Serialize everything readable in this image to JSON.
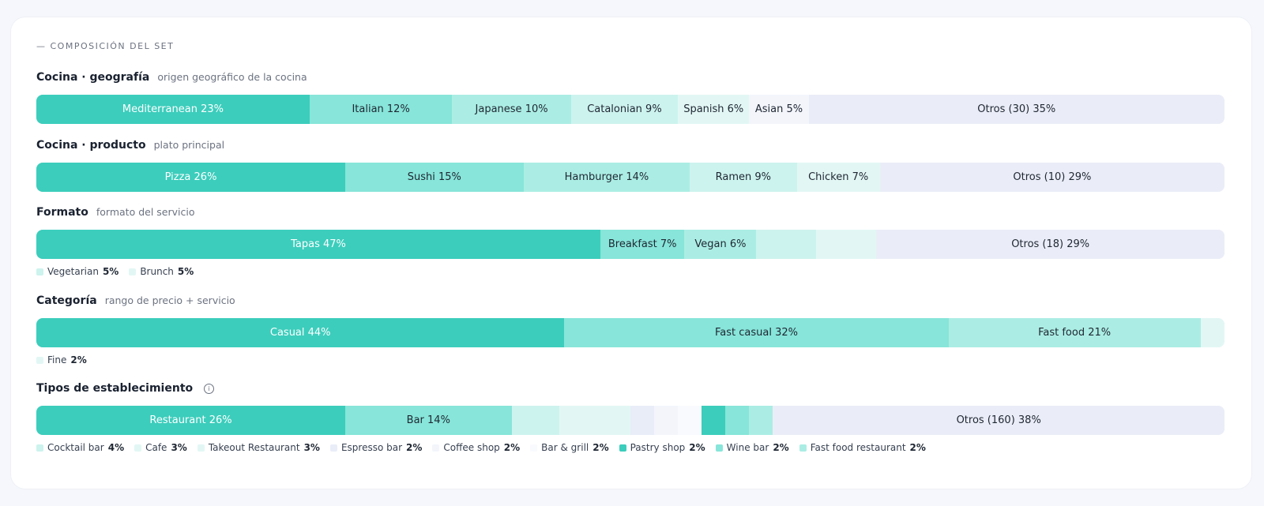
{
  "section_title": "— COMPOSICIÓN DEL SET",
  "colors": {
    "c1": "#3ccdbc",
    "c2": "#87e5d9",
    "c3": "#abede4",
    "c4": "#cdf3ee",
    "c5": "#e2f7f4",
    "c6": "#e9edf8",
    "c7": "#f3f5fb",
    "c8": "#f9fafd",
    "other": "#eaedf7"
  },
  "chart_data": [
    {
      "type": "bar",
      "title": "Cocina · geografía",
      "subtitle": "origen geográfico de la cocina",
      "unit": "%",
      "segments": [
        {
          "name": "Mediterranean",
          "value": 23,
          "label": "Mediterranean 23%",
          "color": "c1",
          "dark": true
        },
        {
          "name": "Italian",
          "value": 12,
          "label": "Italian 12%",
          "color": "c2"
        },
        {
          "name": "Japanese",
          "value": 10,
          "label": "Japanese 10%",
          "color": "c3"
        },
        {
          "name": "Catalonian",
          "value": 9,
          "label": "Catalonian 9%",
          "color": "c4"
        },
        {
          "name": "Spanish",
          "value": 6,
          "label": "Spanish 6%",
          "color": "c5"
        },
        {
          "name": "Asian",
          "value": 5,
          "label": "Asian 5%",
          "color": "c7"
        },
        {
          "name": "Otros (30)",
          "value": 35,
          "label": "Otros (30) 35%",
          "color": "other"
        }
      ],
      "legend": []
    },
    {
      "type": "bar",
      "title": "Cocina · producto",
      "subtitle": "plato principal",
      "unit": "%",
      "segments": [
        {
          "name": "Pizza",
          "value": 26,
          "label": "Pizza 26%",
          "color": "c1",
          "dark": true
        },
        {
          "name": "Sushi",
          "value": 15,
          "label": "Sushi 15%",
          "color": "c2"
        },
        {
          "name": "Hamburger",
          "value": 14,
          "label": "Hamburger 14%",
          "color": "c3"
        },
        {
          "name": "Ramen",
          "value": 9,
          "label": "Ramen 9%",
          "color": "c4"
        },
        {
          "name": "Chicken",
          "value": 7,
          "label": "Chicken 7%",
          "color": "c5"
        },
        {
          "name": "Otros (10)",
          "value": 29,
          "label": "Otros (10) 29%",
          "color": "other"
        }
      ],
      "legend": []
    },
    {
      "type": "bar",
      "title": "Formato",
      "subtitle": "formato del servicio",
      "unit": "%",
      "segments": [
        {
          "name": "Tapas",
          "value": 47,
          "label": "Tapas 47%",
          "color": "c1",
          "dark": true
        },
        {
          "name": "Breakfast",
          "value": 7,
          "label": "Breakfast 7%",
          "color": "c2"
        },
        {
          "name": "Vegan",
          "value": 6,
          "label": "Vegan 6%",
          "color": "c3"
        },
        {
          "name": "Vegetarian",
          "value": 5,
          "label": "",
          "color": "c4"
        },
        {
          "name": "Brunch",
          "value": 5,
          "label": "",
          "color": "c5"
        },
        {
          "name": "Otros (18)",
          "value": 29,
          "label": "Otros (18) 29%",
          "color": "other"
        }
      ],
      "legend": [
        {
          "label": "Vegetarian",
          "value": "5%",
          "color": "c4"
        },
        {
          "label": "Brunch",
          "value": "5%",
          "color": "c5"
        }
      ]
    },
    {
      "type": "bar",
      "title": "Categoría",
      "subtitle": "rango de precio + servicio",
      "unit": "%",
      "segments": [
        {
          "name": "Casual",
          "value": 44,
          "label": "Casual 44%",
          "color": "c1",
          "dark": true
        },
        {
          "name": "Fast casual",
          "value": 32,
          "label": "Fast casual 32%",
          "color": "c2"
        },
        {
          "name": "Fast food",
          "value": 21,
          "label": "Fast food 21%",
          "color": "c3"
        },
        {
          "name": "Fine",
          "value": 2,
          "label": "",
          "color": "c5"
        }
      ],
      "legend": [
        {
          "label": "Fine",
          "value": "2%",
          "color": "c5"
        }
      ]
    },
    {
      "type": "bar",
      "title": "Tipos de establecimiento",
      "subtitle": "",
      "info_icon": "info-circle-icon",
      "unit": "%",
      "segments": [
        {
          "name": "Restaurant",
          "value": 26,
          "label": "Restaurant 26%",
          "color": "c1",
          "dark": true
        },
        {
          "name": "Bar",
          "value": 14,
          "label": "Bar 14%",
          "color": "c2"
        },
        {
          "name": "Cocktail bar",
          "value": 4,
          "label": "",
          "color": "c4"
        },
        {
          "name": "Cafe",
          "value": 3,
          "label": "",
          "color": "c5"
        },
        {
          "name": "Takeout Restaurant",
          "value": 3,
          "label": "",
          "color": "c5"
        },
        {
          "name": "Espresso bar",
          "value": 2,
          "label": "",
          "color": "c6"
        },
        {
          "name": "Coffee shop",
          "value": 2,
          "label": "",
          "color": "c7"
        },
        {
          "name": "Bar & grill",
          "value": 2,
          "label": "",
          "color": "c8"
        },
        {
          "name": "Pastry shop",
          "value": 2,
          "label": "",
          "color": "c1"
        },
        {
          "name": "Wine bar",
          "value": 2,
          "label": "",
          "color": "c2"
        },
        {
          "name": "Fast food restaurant",
          "value": 2,
          "label": "",
          "color": "c3"
        },
        {
          "name": "Otros (160)",
          "value": 38,
          "label": "Otros (160) 38%",
          "color": "other"
        }
      ],
      "legend": [
        {
          "label": "Cocktail bar",
          "value": "4%",
          "color": "c4"
        },
        {
          "label": "Cafe",
          "value": "3%",
          "color": "c5"
        },
        {
          "label": "Takeout Restaurant",
          "value": "3%",
          "color": "c5"
        },
        {
          "label": "Espresso bar",
          "value": "2%",
          "color": "c6"
        },
        {
          "label": "Coffee shop",
          "value": "2%",
          "color": "c7"
        },
        {
          "label": "Bar & grill",
          "value": "2%",
          "color": "c8"
        },
        {
          "label": "Pastry shop",
          "value": "2%",
          "color": "c1"
        },
        {
          "label": "Wine bar",
          "value": "2%",
          "color": "c2"
        },
        {
          "label": "Fast food restaurant",
          "value": "2%",
          "color": "c3"
        }
      ]
    }
  ]
}
